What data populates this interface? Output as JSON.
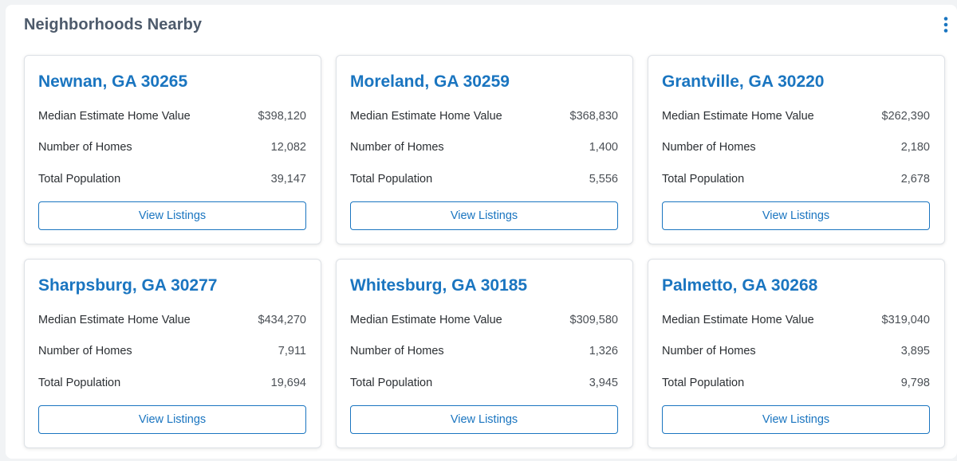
{
  "section": {
    "title": "Neighborhoods Nearby",
    "menu_icon": "vertical-ellipsis-icon",
    "accent_color": "#1a75c0"
  },
  "labels": {
    "median_value": "Median Estimate Home Value",
    "num_homes": "Number of Homes",
    "population": "Total Population",
    "button": "View Listings"
  },
  "neighborhoods": [
    {
      "name": "Newnan, GA 30265",
      "median_value": "$398,120",
      "num_homes": "12,082",
      "population": "39,147"
    },
    {
      "name": "Moreland, GA 30259",
      "median_value": "$368,830",
      "num_homes": "1,400",
      "population": "5,556"
    },
    {
      "name": "Grantville, GA 30220",
      "median_value": "$262,390",
      "num_homes": "2,180",
      "population": "2,678"
    },
    {
      "name": "Sharpsburg, GA 30277",
      "median_value": "$434,270",
      "num_homes": "7,911",
      "population": "19,694"
    },
    {
      "name": "Whitesburg, GA 30185",
      "median_value": "$309,580",
      "num_homes": "1,326",
      "population": "3,945"
    },
    {
      "name": "Palmetto, GA 30268",
      "median_value": "$319,040",
      "num_homes": "3,895",
      "population": "9,798"
    }
  ]
}
